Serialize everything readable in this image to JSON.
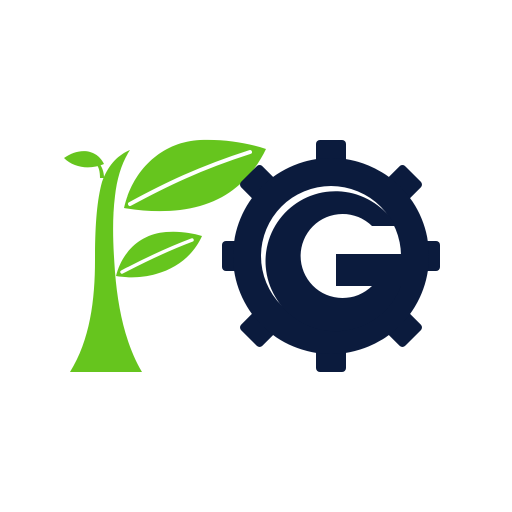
{
  "logo": {
    "lettering": "FG",
    "icons": [
      "sprout-icon",
      "leaf-icon",
      "gear-icon"
    ],
    "colors": {
      "background": "#ffffff",
      "green": "#66c51e",
      "navy": "#0b1b3d",
      "vein": "#ffffff"
    }
  }
}
